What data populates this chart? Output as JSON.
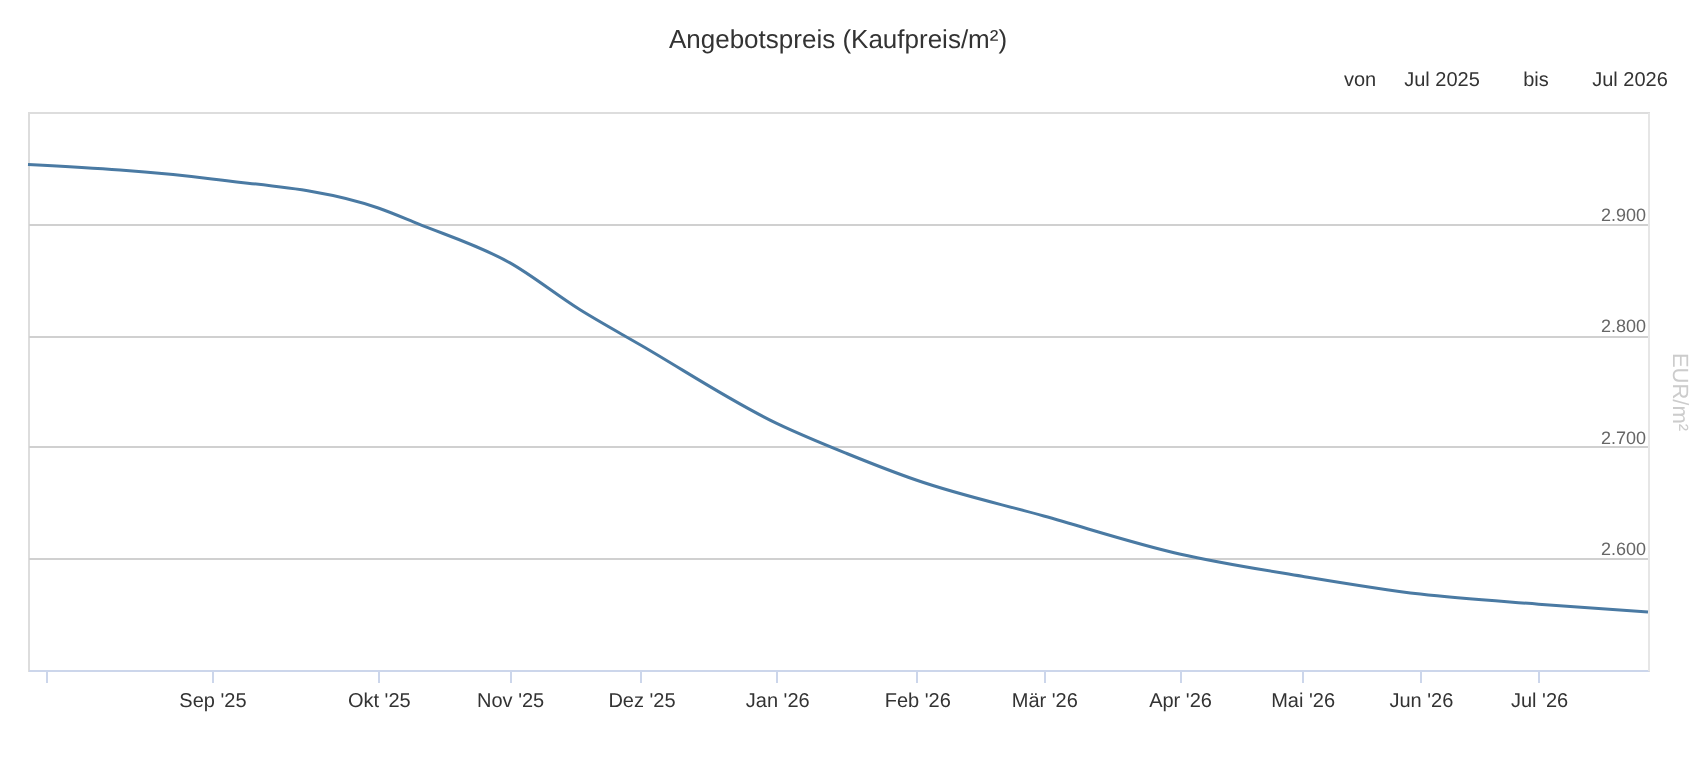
{
  "chart_data": {
    "type": "line",
    "title": "Angebotspreis (Kaufpreis/m²)",
    "ylabel": "EUR/m²",
    "annotations": [
      "von",
      "Jul 2025",
      "bis",
      "Jul 2026"
    ],
    "x": [
      "2025-07-21",
      "2025-09-01",
      "2025-10-09",
      "2025-10-18",
      "2025-11-08",
      "2025-11-24",
      "2025-12-08",
      "2026-01-08",
      "2026-01-24",
      "2026-02-09",
      "2026-03-10",
      "2026-04-10",
      "2026-05-08",
      "2026-06-04",
      "2026-07-01",
      "2026-07-26"
    ],
    "series": [
      {
        "color": "#4a7aa3",
        "values": [
          2953,
          2940,
          2914,
          2900,
          2865,
          2823,
          2791,
          2721,
          2694,
          2670,
          2638,
          2604,
          2584,
          2568,
          2559,
          2552
        ]
      }
    ],
    "xlim": [
      "2025-07-21",
      "2026-07-26"
    ],
    "xticks": [
      {
        "value": "2025-07-25",
        "label": null
      },
      {
        "value": "2025-09-01",
        "label": "Sep '25"
      },
      {
        "value": "2025-10-09",
        "label": "Okt '25"
      },
      {
        "value": "2025-11-08",
        "label": "Nov '25"
      },
      {
        "value": "2025-12-08",
        "label": "Dez '25"
      },
      {
        "value": "2026-01-08",
        "label": "Jan '26"
      },
      {
        "value": "2026-02-09",
        "label": "Feb '26"
      },
      {
        "value": "2026-03-10",
        "label": "Mär '26"
      },
      {
        "value": "2026-04-10",
        "label": "Apr '26"
      },
      {
        "value": "2026-05-08",
        "label": "Mai '26"
      },
      {
        "value": "2026-06-04",
        "label": "Jun '26"
      },
      {
        "value": "2026-07-01",
        "label": "Jul '26"
      }
    ],
    "ylim": [
      2500,
      3000
    ],
    "yticks": [
      {
        "value": 2600,
        "label": "2.600"
      },
      {
        "value": 2700,
        "label": "2.700"
      },
      {
        "value": 2800,
        "label": "2.800"
      },
      {
        "value": 2900,
        "label": "2.900"
      }
    ],
    "grid": "y"
  }
}
